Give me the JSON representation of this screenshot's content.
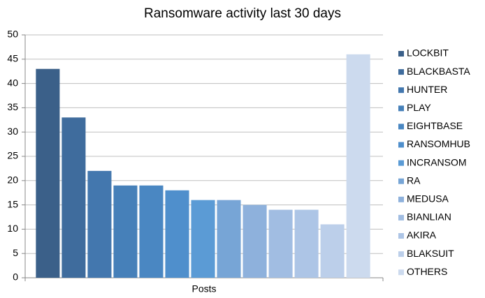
{
  "chart_data": {
    "type": "bar",
    "title": "Ransomware activity last 30 days",
    "categories": [
      "Posts"
    ],
    "series": [
      {
        "name": "LOCKBIT",
        "color": "#3b6089",
        "values": [
          43
        ]
      },
      {
        "name": "BLACKBASTA",
        "color": "#3f6c9d",
        "values": [
          33
        ]
      },
      {
        "name": "HUNTER",
        "color": "#4377ae",
        "values": [
          22
        ]
      },
      {
        "name": "PLAY",
        "color": "#4680b9",
        "values": [
          19
        ]
      },
      {
        "name": "EIGHTBASE",
        "color": "#4a87c2",
        "values": [
          19
        ]
      },
      {
        "name": "RANSOMHUB",
        "color": "#4f8fcc",
        "values": [
          18
        ]
      },
      {
        "name": "INCRANSOM",
        "color": "#5b9bd5",
        "values": [
          16
        ]
      },
      {
        "name": "RA",
        "color": "#77a5d6",
        "values": [
          16
        ]
      },
      {
        "name": "MEDUSA",
        "color": "#8eb1dc",
        "values": [
          15
        ]
      },
      {
        "name": "BIANLIAN",
        "color": "#a1bde2",
        "values": [
          14
        ]
      },
      {
        "name": "AKIRA",
        "color": "#adc5e6",
        "values": [
          14
        ]
      },
      {
        "name": "BLAKSUIT",
        "color": "#bccfea",
        "values": [
          11
        ]
      },
      {
        "name": "OTHERS",
        "color": "#ccdaee",
        "values": [
          46
        ]
      }
    ],
    "ylim": [
      0,
      50
    ],
    "yticks": [
      0,
      5,
      10,
      15,
      20,
      25,
      30,
      35,
      40,
      45,
      50
    ],
    "grid": true,
    "legend": "right"
  }
}
